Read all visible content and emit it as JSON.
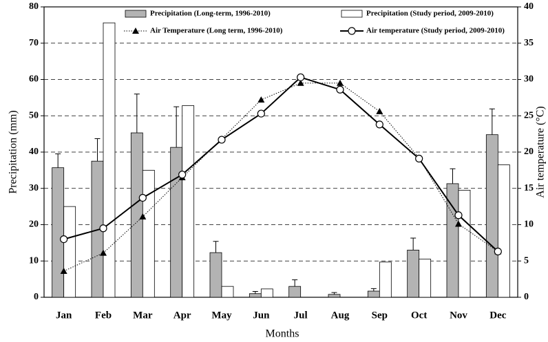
{
  "chart_data": {
    "type": "bar",
    "x_label": "Months",
    "y_label": "Precipitation (mm)",
    "y2_label": "Air temperature (°C)",
    "categories": [
      "Jan",
      "Feb",
      "Mar",
      "Apr",
      "May",
      "Jun",
      "Jul",
      "Aug",
      "Sep",
      "Oct",
      "Nov",
      "Dec"
    ],
    "ylim": [
      0,
      80
    ],
    "yticks": [
      0,
      10,
      20,
      30,
      40,
      50,
      60,
      70,
      80
    ],
    "y2lim": [
      0,
      40
    ],
    "y2ticks": [
      0,
      5,
      10,
      15,
      20,
      25,
      30,
      35,
      40
    ],
    "grid": true,
    "series": [
      {
        "name": "Precipitation (Long-term, 1996-2010)",
        "type": "bar",
        "color": "#b3b3b3",
        "values": [
          35.7,
          37.5,
          45.3,
          41.3,
          12.3,
          1.0,
          3.0,
          0.8,
          1.7,
          13.0,
          31.3,
          44.8
        ],
        "errors": [
          3.8,
          6.2,
          10.7,
          11.2,
          3.1,
          0.6,
          1.8,
          0.5,
          0.7,
          3.3,
          4.1,
          7.1
        ]
      },
      {
        "name": "Precipitation (Study period, 2009-2010)",
        "type": "bar",
        "color": "#ffffff",
        "values": [
          25.0,
          75.6,
          35.0,
          52.8,
          3.0,
          2.3,
          0,
          0,
          9.7,
          10.5,
          29.5,
          36.5
        ]
      },
      {
        "name": "Air Temperature (Long term, 1996-2010)",
        "type": "line",
        "axis": "y2",
        "color": "#000000",
        "marker": "triangle",
        "linestyle": "dotted",
        "values": [
          3.6,
          6.1,
          11.1,
          16.5,
          21.8,
          27.2,
          29.5,
          29.5,
          25.6,
          19.2,
          10.1,
          6.3
        ]
      },
      {
        "name": "Air temperature (Study period, 2009-2010)",
        "type": "line",
        "axis": "y2",
        "color": "#000000",
        "marker": "circle",
        "linestyle": "solid",
        "values": [
          8.0,
          9.5,
          13.7,
          16.9,
          21.7,
          25.3,
          30.3,
          28.6,
          23.8,
          19.1,
          11.3,
          6.3
        ]
      }
    ]
  }
}
